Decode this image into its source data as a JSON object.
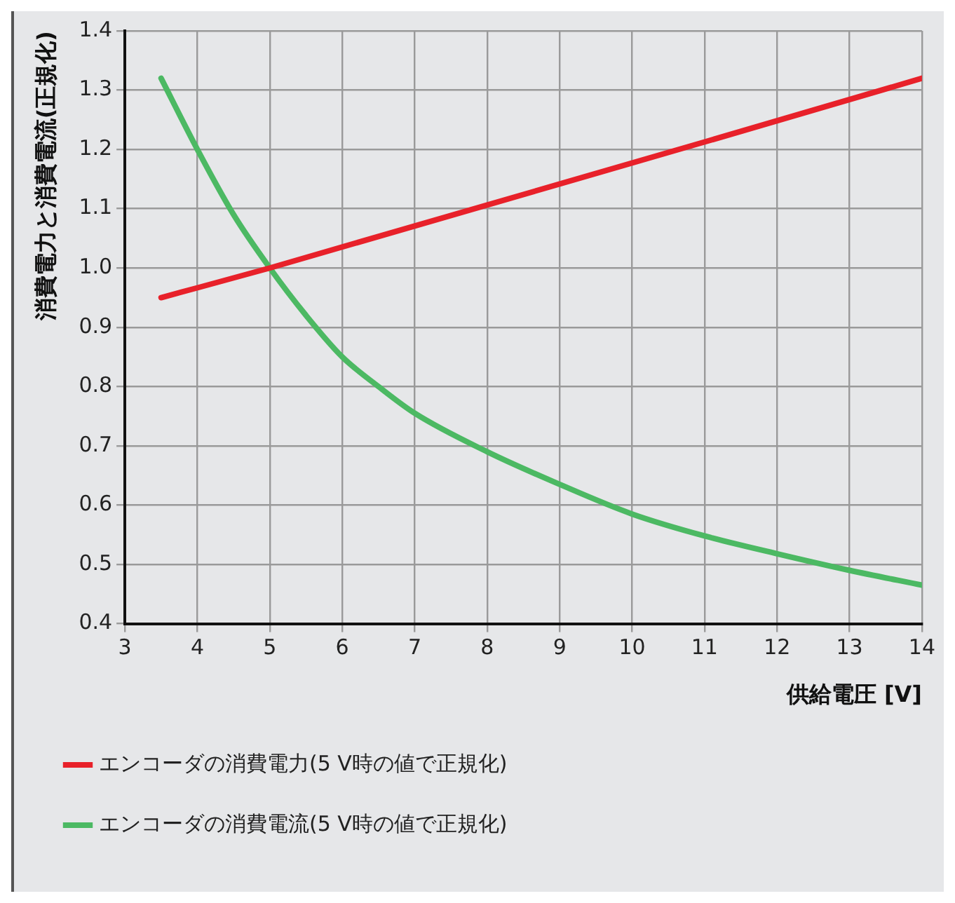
{
  "chart_data": {
    "type": "line",
    "xlabel": "供給電圧 [V]",
    "ylabel": "消費電力と消費電流(正規化)",
    "xlim": [
      3,
      14
    ],
    "xticks": [
      3,
      4,
      5,
      6,
      7,
      8,
      9,
      10,
      11,
      12,
      13,
      14
    ],
    "ylim": [
      0.4,
      1.4
    ],
    "yticks": [
      {
        "value": 0.4,
        "label": "0.4"
      },
      {
        "value": 0.5,
        "label": "0.5"
      },
      {
        "value": 0.6,
        "label": "0.6"
      },
      {
        "value": 0.7,
        "label": "0.7"
      },
      {
        "value": 0.8,
        "label": "0.8"
      },
      {
        "value": 0.9,
        "label": "0.9"
      },
      {
        "value": 1,
        "label": "1.0"
      },
      {
        "value": 1.1,
        "label": "1.1"
      },
      {
        "value": 1.2,
        "label": "1.2"
      },
      {
        "value": 1.3,
        "label": "1.3"
      },
      {
        "value": 1.4,
        "label": "1.4"
      }
    ],
    "grid": true,
    "legend": "bottom",
    "marker": "none",
    "line_style": "solid",
    "series": [
      {
        "name": "エンコーダの消費電力(5 V時の値で正規化)",
        "color": "#e8212a",
        "x": [
          3.5,
          5,
          14
        ],
        "values": [
          0.95,
          1.0,
          1.32
        ]
      },
      {
        "name": "エンコーダの消費電流(5 V時の値で正規化)",
        "color": "#4cb963",
        "x": [
          3.5,
          4,
          4.5,
          5,
          5.5,
          6,
          6.5,
          7,
          8,
          9,
          10,
          11,
          12,
          13,
          14
        ],
        "values": [
          1.32,
          1.2,
          1.09,
          1.0,
          0.92,
          0.85,
          0.8,
          0.755,
          0.69,
          0.635,
          0.585,
          0.548,
          0.518,
          0.49,
          0.465
        ]
      }
    ]
  }
}
